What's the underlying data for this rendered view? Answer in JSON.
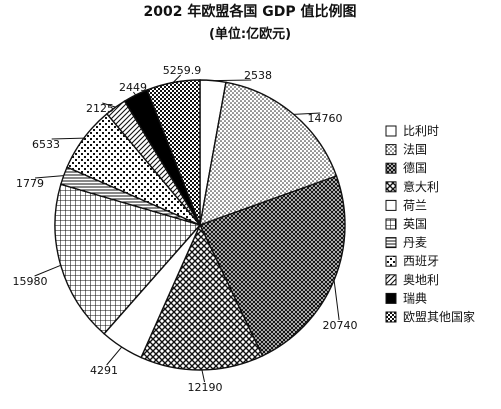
{
  "chart_data": {
    "type": "pie",
    "title": "2002 年欧盟各国 GDP 值比例图",
    "subtitle": "(单位:亿欧元)",
    "legend_position": "right",
    "categories": [
      "比利时",
      "法国",
      "德国",
      "意大利",
      "荷兰",
      "英国",
      "丹麦",
      "西班牙",
      "奥地利",
      "瑞典",
      "欧盟其他国家"
    ],
    "values": [
      2538,
      14760,
      20740,
      12190,
      4291,
      15980,
      1779,
      6533,
      2125,
      2449,
      5259.9
    ],
    "value_labels": [
      "2538",
      "14760",
      "20740",
      "12190",
      "4291",
      "15980",
      "1779",
      "6533",
      "2125",
      "2449",
      "5259.9"
    ],
    "patterns": [
      "white",
      "dots-light",
      "crosshatch-dense",
      "diagonal-cross",
      "white",
      "grid",
      "horizontal-lines",
      "dots-checker",
      "diagonal-lines",
      "solid-black",
      "dark-checker"
    ]
  }
}
